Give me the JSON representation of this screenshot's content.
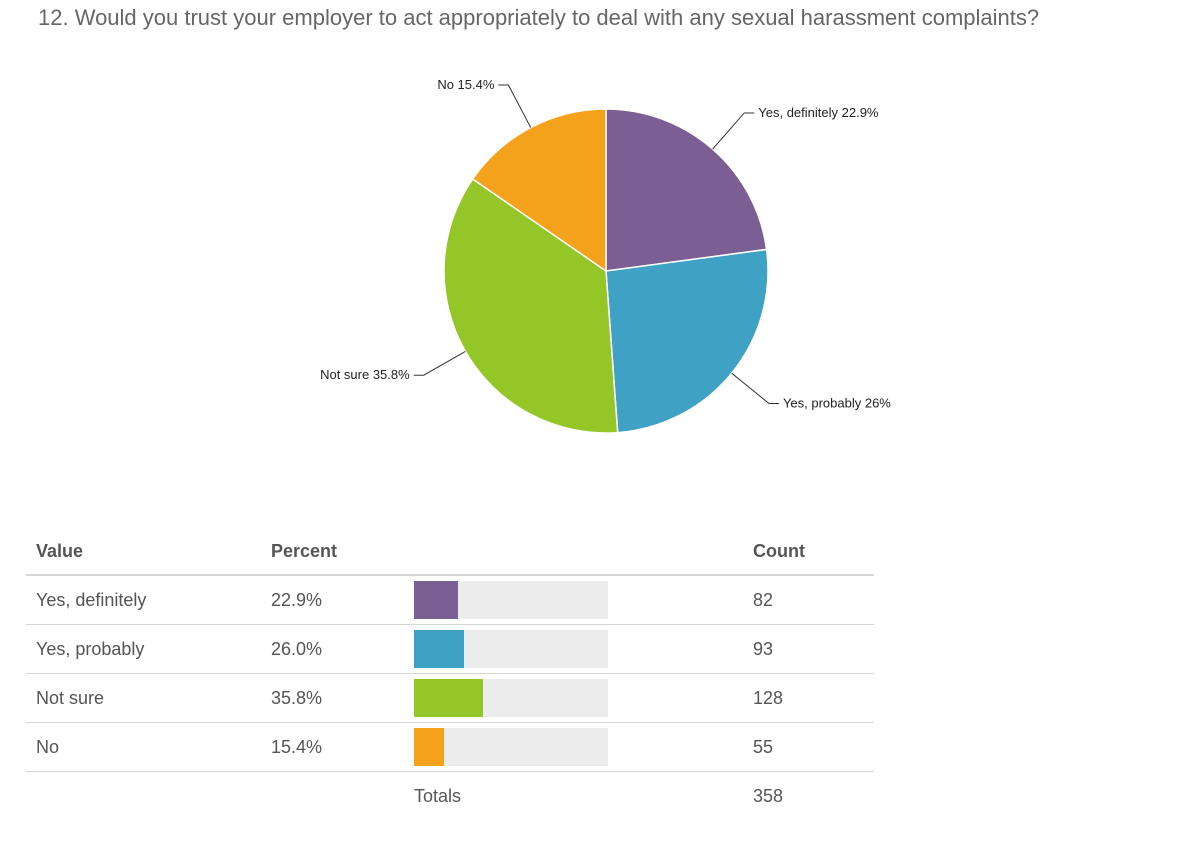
{
  "question": {
    "title": "12. Would you trust your employer to act appropriately to deal with any sexual harassment complaints?"
  },
  "chart_data": {
    "type": "pie",
    "title": "12. Would you trust your employer to act appropriately to deal with any sexual harassment complaints?",
    "slices": [
      {
        "label": "Yes, definitely",
        "percent": 22.9,
        "callout": "Yes, definitely 22.9%",
        "color": "#7b5f94"
      },
      {
        "label": "Yes, probably",
        "percent": 26.0,
        "callout": "Yes, probably 26%",
        "color": "#3fa1c3"
      },
      {
        "label": "Not sure",
        "percent": 35.8,
        "callout": "Not sure 35.8%",
        "color": "#95c628"
      },
      {
        "label": "No",
        "percent": 15.4,
        "callout": "No 15.4%",
        "color": "#f4a21c"
      }
    ]
  },
  "table": {
    "headers": {
      "value": "Value",
      "percent": "Percent",
      "count": "Count"
    },
    "rows": [
      {
        "value": "Yes, definitely",
        "percent": "22.9%",
        "percent_num": 22.9,
        "count": "82",
        "color": "#7b5f94"
      },
      {
        "value": "Yes, probably",
        "percent": "26.0%",
        "percent_num": 26.0,
        "count": "93",
        "color": "#3fa1c3"
      },
      {
        "value": "Not sure",
        "percent": "35.8%",
        "percent_num": 35.8,
        "count": "128",
        "color": "#95c628"
      },
      {
        "value": "No",
        "percent": "15.4%",
        "percent_num": 15.4,
        "count": "55",
        "color": "#f4a21c"
      }
    ],
    "totals_label": "Totals",
    "totals_count": "358"
  }
}
